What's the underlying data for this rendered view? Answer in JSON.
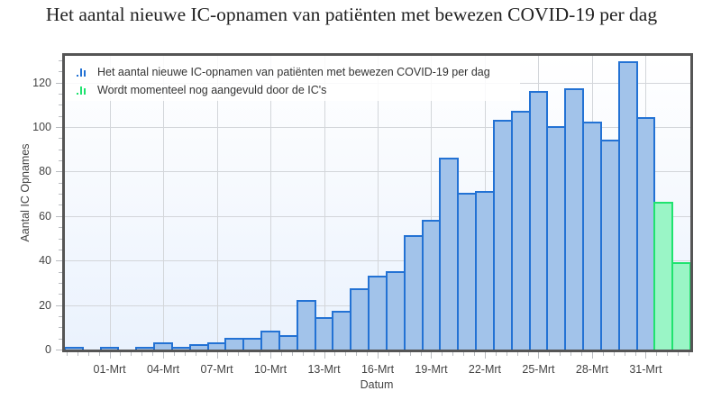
{
  "chart_data": {
    "type": "bar",
    "title": "Het aantal nieuwe IC-opnamen van patiënten met bewezen COVID-19 per dag",
    "xlabel": "Datum",
    "ylabel": "Aantal IC Opnames",
    "ylim": [
      0,
      132
    ],
    "yticks": [
      0,
      20,
      40,
      60,
      80,
      100,
      120
    ],
    "xticks": [
      "01-Mrt",
      "04-Mrt",
      "07-Mrt",
      "10-Mrt",
      "13-Mrt",
      "16-Mrt",
      "19-Mrt",
      "22-Mrt",
      "25-Mrt",
      "28-Mrt",
      "31-Mrt"
    ],
    "grid": true,
    "legend_position": "top-left inside plot",
    "categories": [
      "28-Feb",
      "29-Feb",
      "01-Mrt",
      "02-Mrt",
      "03-Mrt",
      "04-Mrt",
      "05-Mrt",
      "06-Mrt",
      "07-Mrt",
      "08-Mrt",
      "09-Mrt",
      "10-Mrt",
      "11-Mrt",
      "12-Mrt",
      "13-Mrt",
      "14-Mrt",
      "15-Mrt",
      "16-Mrt",
      "17-Mrt",
      "18-Mrt",
      "19-Mrt",
      "20-Mrt",
      "21-Mrt",
      "22-Mrt",
      "23-Mrt",
      "24-Mrt",
      "25-Mrt",
      "26-Mrt",
      "27-Mrt",
      "28-Mrt",
      "29-Mrt",
      "30-Mrt",
      "31-Mrt",
      "01-Apr",
      "02-Apr"
    ],
    "series": [
      {
        "name": "Het aantal nieuwe IC-opnamen van patiënten met bewezen COVID-19 per dag",
        "color": "#2372d4",
        "fill": "#a2c3ea",
        "values": [
          1,
          0,
          1,
          0,
          1,
          3,
          1,
          2,
          3,
          5,
          5,
          8,
          6,
          22,
          14,
          17,
          27,
          33,
          35,
          51,
          58,
          86,
          70,
          71,
          103,
          107,
          116,
          100,
          117,
          102,
          94,
          129,
          104,
          null,
          null
        ]
      },
      {
        "name": "Wordt momenteel nog aangevuld door de IC's",
        "color": "#1fe36f",
        "fill": "#9af5c6",
        "values": [
          null,
          null,
          null,
          null,
          null,
          null,
          null,
          null,
          null,
          null,
          null,
          null,
          null,
          null,
          null,
          null,
          null,
          null,
          null,
          null,
          null,
          null,
          null,
          null,
          null,
          null,
          null,
          null,
          null,
          null,
          null,
          null,
          null,
          66,
          39
        ]
      }
    ]
  },
  "legend": {
    "items": [
      {
        "icon": "bar-chart-icon",
        "label": "Het aantal nieuwe IC-opnamen van patiënten met bewezen COVID-19 per dag"
      },
      {
        "icon": "bar-chart-icon",
        "label": "Wordt momenteel nog aangevuld door de IC's"
      }
    ]
  },
  "colors": {
    "frame": "#555555",
    "grid": "#d3d6da",
    "text": "#444444"
  }
}
